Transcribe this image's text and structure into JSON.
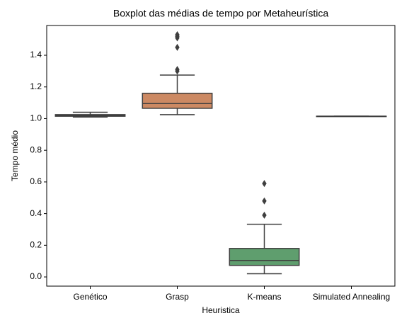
{
  "chart_data": {
    "type": "box",
    "title": "Boxplot das médias de tempo por Metaheurística",
    "xlabel": "Heuristica",
    "ylabel": "Tempo médio",
    "categories": [
      "Genético",
      "Grasp",
      "K-means",
      "Simulated Annealing"
    ],
    "boxes": [
      {
        "color": "#5975a4",
        "min": 1.01,
        "q1": 1.015,
        "median": 1.02,
        "q3": 1.025,
        "max": 1.04,
        "outliers": []
      },
      {
        "color": "#cc8963",
        "min": 1.025,
        "q1": 1.065,
        "median": 1.095,
        "q3": 1.16,
        "max": 1.275,
        "outliers": [
          1.3,
          1.31,
          1.45,
          1.51,
          1.52,
          1.53
        ]
      },
      {
        "color": "#5f9e6e",
        "min": 0.02,
        "q1": 0.073,
        "median": 0.104,
        "q3": 0.18,
        "max": 0.333,
        "outliers": [
          0.39,
          0.48,
          0.59
        ]
      },
      {
        "color": "#b55d60",
        "min": 1.015,
        "q1": 1.015,
        "median": 1.015,
        "q3": 1.015,
        "max": 1.015,
        "outliers": []
      }
    ],
    "ylim": [
      -0.058,
      1.588
    ],
    "yticks": [
      {
        "value": 0,
        "label": "0.0"
      },
      0.2,
      0.4,
      0.6,
      0.8,
      {
        "value": 1,
        "label": "1.0"
      },
      1.2,
      1.4
    ],
    "grid": false
  }
}
